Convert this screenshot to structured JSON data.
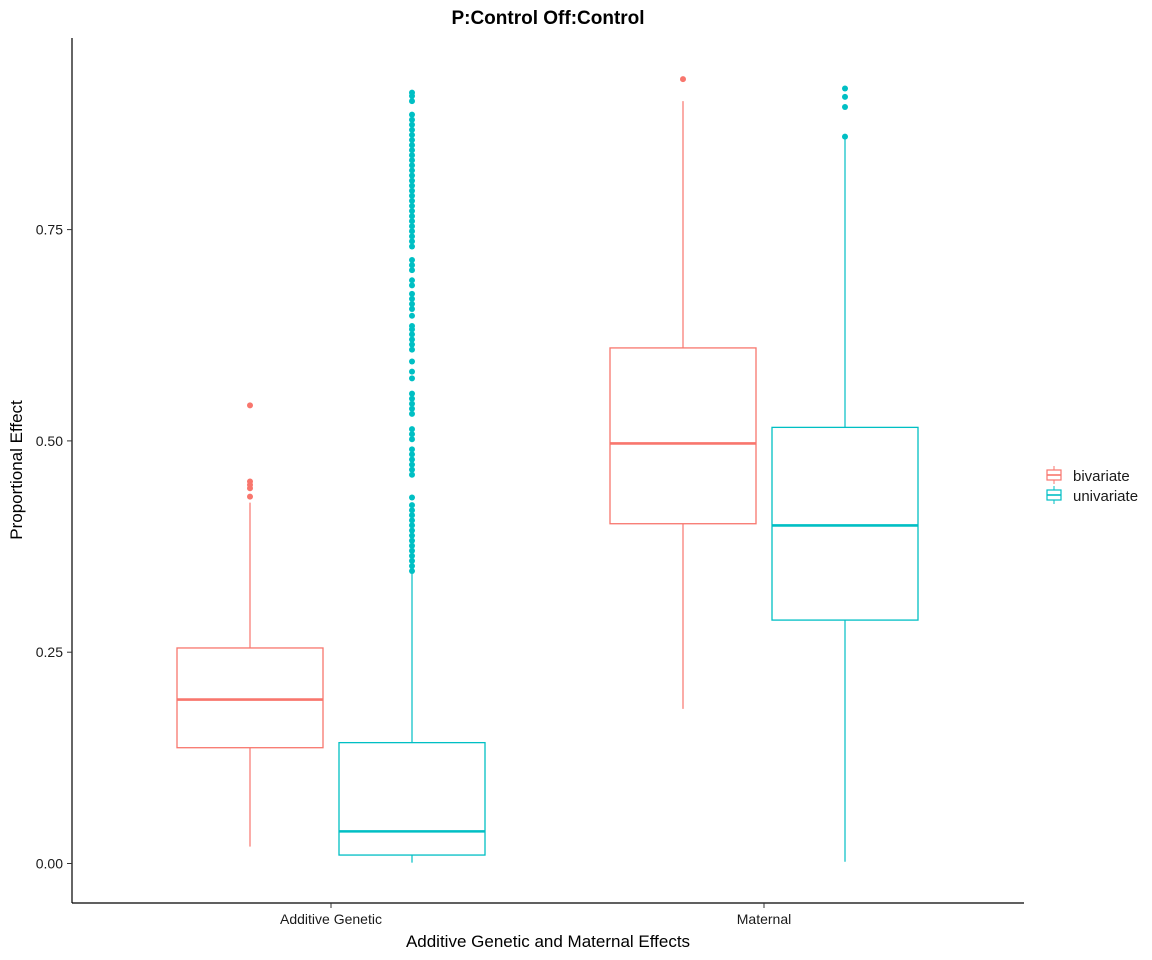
{
  "chart_data": {
    "type": "boxplot",
    "title": "P:Control Off:Control",
    "xlabel": "Additive Genetic and Maternal Effects",
    "ylabel": "Proportional Effect",
    "categories": [
      "Additive Genetic",
      "Maternal"
    ],
    "ylim": [
      -0.045,
      0.975
    ],
    "yticks": [
      0.0,
      0.25,
      0.5,
      0.75
    ],
    "ytick_labels": [
      "0.00",
      "0.25",
      "0.50",
      "0.75"
    ],
    "grid": false,
    "legend_position": "right",
    "series": [
      {
        "name": "bivariate",
        "color": "#F8766D",
        "boxes": [
          {
            "category": "Additive Genetic",
            "whisker_low": 0.02,
            "q1": 0.137,
            "median": 0.194,
            "q3": 0.255,
            "whisker_high": 0.427,
            "outliers": [
              0.434,
              0.444,
              0.448,
              0.452,
              0.542
            ]
          },
          {
            "category": "Maternal",
            "whisker_low": 0.183,
            "q1": 0.402,
            "median": 0.497,
            "q3": 0.61,
            "whisker_high": 0.902,
            "outliers": [
              0.928
            ]
          }
        ]
      },
      {
        "name": "univariate",
        "color": "#00BFC4",
        "boxes": [
          {
            "category": "Additive Genetic",
            "whisker_low": 0.001,
            "q1": 0.01,
            "median": 0.038,
            "q3": 0.143,
            "whisker_high": 0.344,
            "outliers": [
              0.346,
              0.352,
              0.358,
              0.364,
              0.37,
              0.376,
              0.382,
              0.388,
              0.394,
              0.4,
              0.406,
              0.412,
              0.418,
              0.424,
              0.433,
              0.46,
              0.466,
              0.472,
              0.478,
              0.484,
              0.49,
              0.502,
              0.508,
              0.514,
              0.532,
              0.538,
              0.544,
              0.55,
              0.556,
              0.574,
              0.582,
              0.594,
              0.608,
              0.614,
              0.62,
              0.626,
              0.632,
              0.636,
              0.648,
              0.656,
              0.662,
              0.668,
              0.674,
              0.684,
              0.69,
              0.702,
              0.708,
              0.714,
              0.73,
              0.736,
              0.742,
              0.748,
              0.754,
              0.76,
              0.766,
              0.772,
              0.778,
              0.784,
              0.79,
              0.796,
              0.802,
              0.808,
              0.814,
              0.82,
              0.826,
              0.832,
              0.838,
              0.844,
              0.85,
              0.856,
              0.862,
              0.868,
              0.874,
              0.88,
              0.886,
              0.902,
              0.908,
              0.912
            ]
          },
          {
            "category": "Maternal",
            "whisker_low": 0.002,
            "q1": 0.288,
            "median": 0.4,
            "q3": 0.516,
            "whisker_high": 0.857,
            "outliers": [
              0.86,
              0.895,
              0.907,
              0.917
            ]
          }
        ]
      }
    ]
  }
}
